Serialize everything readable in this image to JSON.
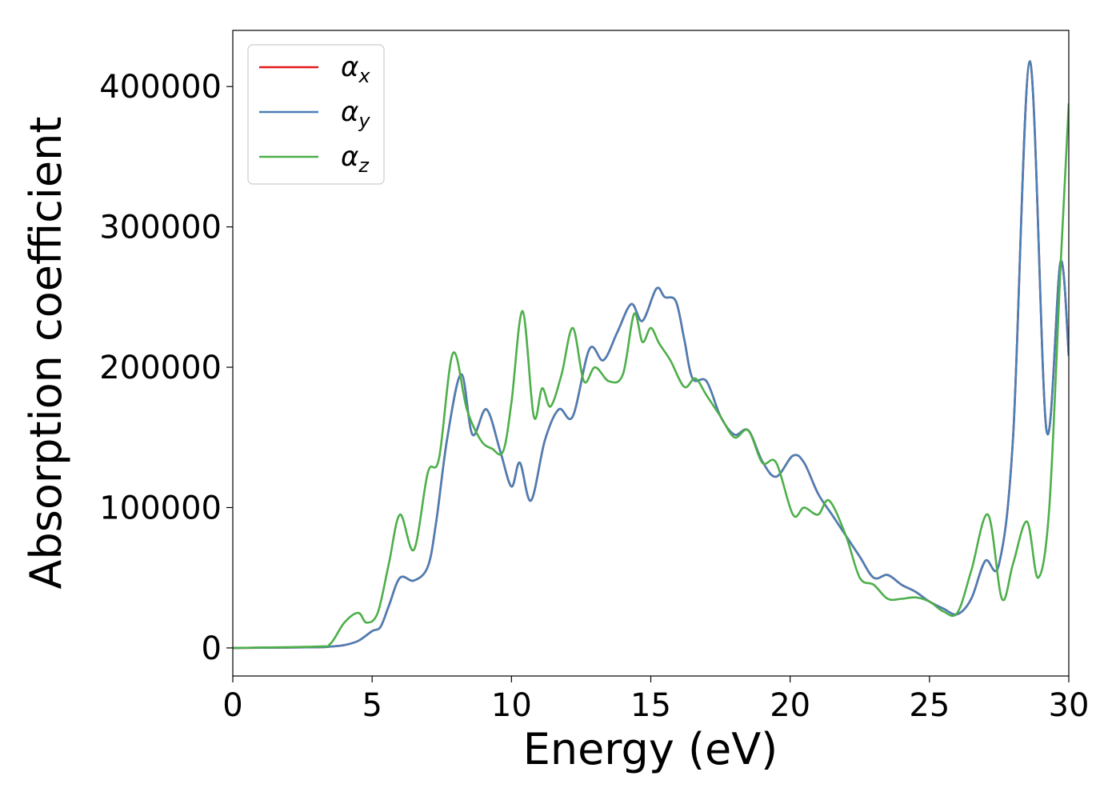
{
  "chart_data": {
    "type": "line",
    "xlabel": "Energy (eV)",
    "ylabel": "Absorption coefficient",
    "xlim": [
      0,
      30
    ],
    "ylim": [
      -20000,
      440000
    ],
    "xticks": [
      0,
      5,
      10,
      15,
      20,
      25,
      30
    ],
    "yticks": [
      0,
      100000,
      200000,
      300000,
      400000
    ],
    "grid": false,
    "legend_position": "top-left",
    "series": [
      {
        "name": "α_x",
        "symbol": "α",
        "subscript": "x",
        "color": "#e41a1c",
        "x": [
          0,
          3,
          3.5,
          4,
          4.5,
          5,
          5.3,
          5.6,
          6.0,
          6.5,
          7.0,
          7.3,
          7.7,
          8.2,
          8.6,
          9.1,
          9.6,
          10.0,
          10.3,
          10.7,
          11.2,
          11.7,
          12.2,
          12.8,
          13.3,
          13.8,
          14.3,
          14.7,
          15.2,
          15.5,
          15.9,
          16.2,
          16.5,
          17.0,
          17.5,
          18.0,
          18.5,
          19.0,
          19.5,
          20.1,
          20.5,
          21.0,
          21.5,
          22.0,
          22.5,
          23.0,
          23.5,
          24.0,
          24.5,
          25.0,
          25.5,
          26.0,
          26.5,
          27.0,
          27.5,
          28.0,
          28.6,
          29.2,
          29.7,
          30.0
        ],
        "y": [
          0,
          500,
          1000,
          2000,
          5000,
          12000,
          15000,
          30000,
          50000,
          48000,
          58000,
          90000,
          150000,
          195000,
          152000,
          170000,
          140000,
          115000,
          132000,
          105000,
          148000,
          170000,
          165000,
          213000,
          205000,
          225000,
          245000,
          233000,
          256000,
          250000,
          247000,
          220000,
          192000,
          190000,
          165000,
          152000,
          155000,
          133000,
          122000,
          137000,
          132000,
          110000,
          95000,
          80000,
          65000,
          50000,
          52000,
          45000,
          40000,
          33000,
          28000,
          24000,
          35000,
          62000,
          60000,
          150000,
          418000,
          155000,
          275000,
          208000
        ]
      },
      {
        "name": "α_y",
        "symbol": "α",
        "subscript": "y",
        "color": "#4a7fb5",
        "x": [
          0,
          3,
          3.5,
          4,
          4.5,
          5,
          5.3,
          5.6,
          6.0,
          6.5,
          7.0,
          7.3,
          7.7,
          8.2,
          8.6,
          9.1,
          9.6,
          10.0,
          10.3,
          10.7,
          11.2,
          11.7,
          12.2,
          12.8,
          13.3,
          13.8,
          14.3,
          14.7,
          15.2,
          15.5,
          15.9,
          16.2,
          16.5,
          17.0,
          17.5,
          18.0,
          18.5,
          19.0,
          19.5,
          20.1,
          20.5,
          21.0,
          21.5,
          22.0,
          22.5,
          23.0,
          23.5,
          24.0,
          24.5,
          25.0,
          25.5,
          26.0,
          26.5,
          27.0,
          27.5,
          28.0,
          28.6,
          29.2,
          29.7,
          30.0
        ],
        "y": [
          0,
          500,
          1000,
          2000,
          5000,
          12000,
          15000,
          30000,
          50000,
          48000,
          58000,
          90000,
          150000,
          195000,
          152000,
          170000,
          140000,
          115000,
          132000,
          105000,
          148000,
          170000,
          165000,
          213000,
          205000,
          225000,
          245000,
          233000,
          256000,
          250000,
          247000,
          220000,
          192000,
          190000,
          165000,
          152000,
          155000,
          133000,
          122000,
          137000,
          132000,
          110000,
          95000,
          80000,
          65000,
          50000,
          52000,
          45000,
          40000,
          33000,
          28000,
          24000,
          35000,
          62000,
          60000,
          150000,
          418000,
          155000,
          275000,
          208000
        ]
      },
      {
        "name": "α_z",
        "symbol": "α",
        "subscript": "z",
        "color": "#4daf4a",
        "x": [
          0,
          3,
          3.5,
          4,
          4.5,
          4.8,
          5.2,
          5.6,
          6.0,
          6.5,
          7.0,
          7.4,
          7.9,
          8.4,
          8.9,
          9.3,
          9.7,
          10.0,
          10.4,
          10.8,
          11.1,
          11.4,
          11.8,
          12.2,
          12.6,
          13.0,
          13.5,
          14.0,
          14.4,
          14.7,
          15.0,
          15.3,
          15.7,
          16.2,
          16.6,
          17.0,
          17.5,
          18.0,
          18.5,
          19.0,
          19.5,
          20.1,
          20.5,
          21.0,
          21.4,
          22.0,
          22.5,
          23.0,
          23.5,
          24.0,
          24.5,
          25.0,
          25.5,
          26.0,
          26.5,
          27.1,
          27.6,
          28.0,
          28.5,
          28.9,
          29.3,
          29.7,
          30.0
        ],
        "y": [
          0,
          1000,
          3000,
          18000,
          25000,
          18000,
          25000,
          60000,
          95000,
          70000,
          125000,
          135000,
          210000,
          170000,
          148000,
          142000,
          140000,
          175000,
          240000,
          165000,
          185000,
          172000,
          195000,
          228000,
          190000,
          200000,
          190000,
          195000,
          238000,
          218000,
          228000,
          217000,
          205000,
          186000,
          192000,
          180000,
          165000,
          150000,
          155000,
          132000,
          132000,
          95000,
          100000,
          95000,
          105000,
          80000,
          50000,
          45000,
          35000,
          35000,
          36000,
          33000,
          26000,
          25000,
          55000,
          95000,
          35000,
          60000,
          90000,
          50000,
          100000,
          270000,
          388000
        ]
      }
    ]
  }
}
